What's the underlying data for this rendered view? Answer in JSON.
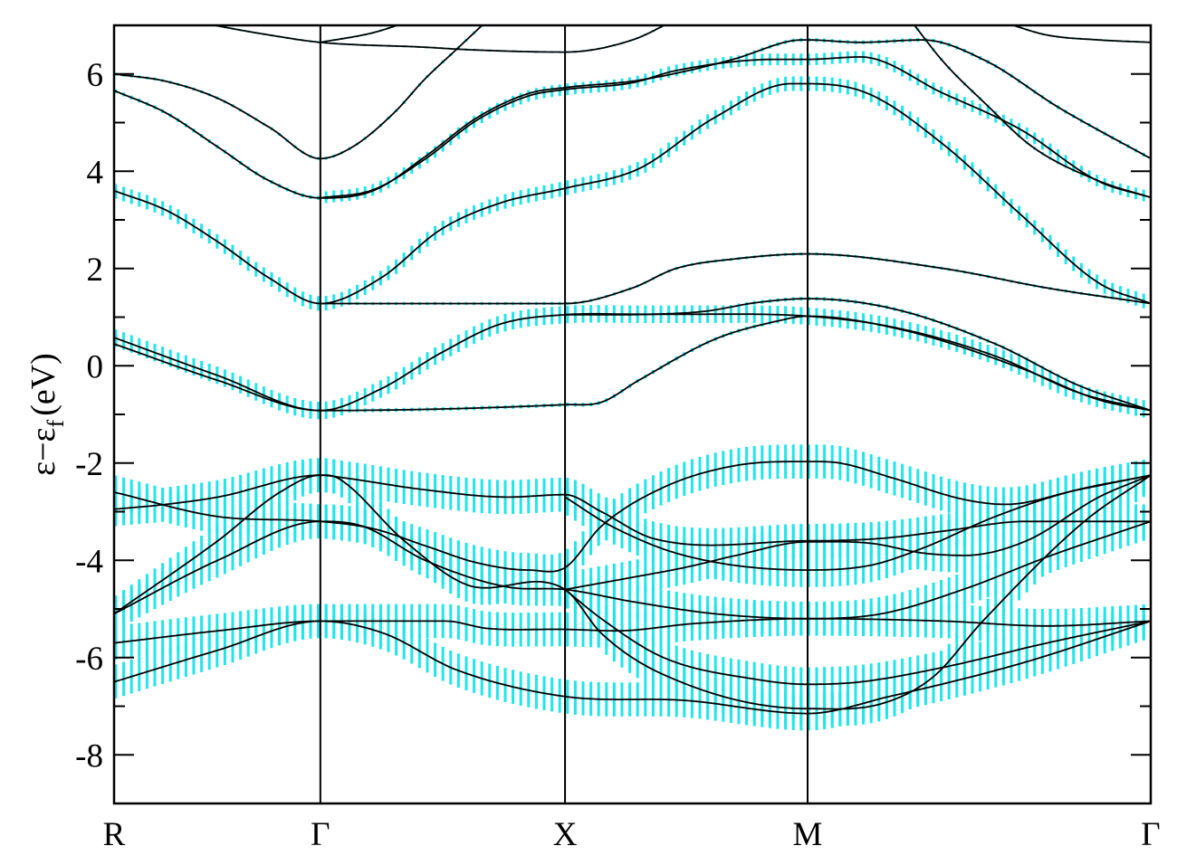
{
  "chart_data": {
    "type": "line",
    "title": "",
    "ylabel": {
      "main": "ε−ε",
      "subscript": "f",
      "unit": "(eV)"
    },
    "xlabel": "",
    "ylim": [
      -9,
      7
    ],
    "xlim": [
      0,
      1
    ],
    "yticks": [
      -8,
      -6,
      -4,
      -2,
      0,
      2,
      4,
      6
    ],
    "yticks_minor_step": 1,
    "xticks": [
      {
        "label": "R",
        "k": 0
      },
      {
        "label": "Γ",
        "k": 0.199
      },
      {
        "label": "X",
        "k": 0.435
      },
      {
        "label": "M",
        "k": 0.669
      },
      {
        "label": "Γ",
        "k": 1.0
      }
    ],
    "grid": "vertical lines at high-symmetry points",
    "colors": {
      "band_line": "#000000",
      "fat_band": "#1ee6ea"
    },
    "bands": [
      {
        "weight": 0.35,
        "points": [
          [
            0,
            -6.5
          ],
          [
            0.1,
            -5.85
          ],
          [
            0.199,
            -5.25
          ],
          [
            0.26,
            -5.5
          ],
          [
            0.33,
            -6.25
          ],
          [
            0.435,
            -6.8
          ],
          [
            0.55,
            -6.88
          ],
          [
            0.669,
            -7.15
          ],
          [
            0.748,
            -6.8
          ],
          [
            0.878,
            -6.1
          ],
          [
            1,
            -5.25
          ]
        ]
      },
      {
        "weight": 0.35,
        "points": [
          [
            0,
            -5.7
          ],
          [
            0.1,
            -5.45
          ],
          [
            0.199,
            -5.25
          ],
          [
            0.32,
            -5.25
          ],
          [
            0.36,
            -5.4
          ],
          [
            0.435,
            -5.42
          ],
          [
            0.485,
            -5.45
          ],
          [
            0.56,
            -5.3
          ],
          [
            0.669,
            -5.2
          ],
          [
            0.8,
            -5.25
          ],
          [
            0.9,
            -5.35
          ],
          [
            1,
            -5.25
          ]
        ]
      },
      {
        "weight": 0.35,
        "points": [
          [
            0,
            -5.1
          ],
          [
            0.1,
            -3.6
          ],
          [
            0.16,
            -2.6
          ],
          [
            0.199,
            -2.25
          ],
          [
            0.215,
            -2.3
          ],
          [
            0.28,
            -3.6
          ],
          [
            0.34,
            -4.5
          ],
          [
            0.435,
            -4.6
          ],
          [
            0.47,
            -5.5
          ],
          [
            0.53,
            -6.35
          ],
          [
            0.669,
            -7.05
          ],
          [
            0.74,
            -6.95
          ],
          [
            0.79,
            -6.4
          ],
          [
            0.838,
            -5.25
          ],
          [
            0.936,
            -3.2
          ],
          [
            1,
            -2.25
          ]
        ]
      },
      {
        "weight": 0.35,
        "points": [
          [
            0,
            -5.1
          ],
          [
            0.1,
            -4.0
          ],
          [
            0.199,
            -3.2
          ],
          [
            0.24,
            -3.3
          ],
          [
            0.3,
            -4.0
          ],
          [
            0.38,
            -4.55
          ],
          [
            0.435,
            -4.6
          ],
          [
            0.5,
            -4.85
          ],
          [
            0.58,
            -5.1
          ],
          [
            0.669,
            -5.2
          ],
          [
            0.74,
            -5.1
          ],
          [
            0.819,
            -4.6
          ],
          [
            0.904,
            -3.9
          ],
          [
            1,
            -3.2
          ]
        ]
      },
      {
        "weight": 0.35,
        "points": [
          [
            0,
            -2.6
          ],
          [
            0.1,
            -3.1
          ],
          [
            0.199,
            -3.2
          ],
          [
            0.25,
            -3.35
          ],
          [
            0.3,
            -3.7
          ],
          [
            0.35,
            -4.05
          ],
          [
            0.4,
            -4.2
          ],
          [
            0.435,
            -4.15
          ],
          [
            0.47,
            -3.3
          ],
          [
            0.53,
            -2.5
          ],
          [
            0.6,
            -2.05
          ],
          [
            0.669,
            -1.97
          ],
          [
            0.7,
            -2.0
          ],
          [
            0.75,
            -2.3
          ],
          [
            0.82,
            -2.75
          ],
          [
            0.86,
            -2.85
          ],
          [
            0.93,
            -2.55
          ],
          [
            1,
            -2.25
          ]
        ]
      },
      {
        "weight": 0.35,
        "points": [
          [
            0,
            -2.95
          ],
          [
            0.05,
            -2.85
          ],
          [
            0.1,
            -2.7
          ],
          [
            0.199,
            -2.25
          ],
          [
            0.22,
            -2.3
          ],
          [
            0.3,
            -2.55
          ],
          [
            0.38,
            -2.7
          ],
          [
            0.435,
            -2.65
          ],
          [
            0.47,
            -3.0
          ],
          [
            0.52,
            -3.55
          ],
          [
            0.669,
            -3.6
          ],
          [
            0.74,
            -3.55
          ],
          [
            0.8,
            -3.4
          ],
          [
            0.88,
            -3.2
          ],
          [
            1,
            -3.2
          ]
        ]
      },
      {
        "weight": 0.35,
        "points": [
          [
            0.435,
            -2.7
          ],
          [
            0.48,
            -3.3
          ],
          [
            0.55,
            -3.9
          ],
          [
            0.669,
            -4.2
          ],
          [
            0.73,
            -4.1
          ],
          [
            0.78,
            -3.75
          ],
          [
            0.85,
            -3.1
          ],
          [
            0.92,
            -2.6
          ],
          [
            1,
            -2.25
          ]
        ]
      },
      {
        "weight": 0.35,
        "points": [
          [
            0.435,
            -4.6
          ],
          [
            0.5,
            -4.35
          ],
          [
            0.55,
            -4.15
          ],
          [
            0.6,
            -3.9
          ],
          [
            0.669,
            -3.62
          ],
          [
            0.73,
            -3.65
          ],
          [
            0.78,
            -3.85
          ],
          [
            0.82,
            -3.9
          ],
          [
            0.88,
            -3.6
          ],
          [
            0.95,
            -2.7
          ],
          [
            1,
            -2.25
          ]
        ]
      },
      {
        "weight": 0.35,
        "points": [
          [
            0.435,
            -4.6
          ],
          [
            0.47,
            -5.2
          ],
          [
            0.53,
            -6.0
          ],
          [
            0.62,
            -6.45
          ],
          [
            0.669,
            -6.55
          ],
          [
            0.72,
            -6.5
          ],
          [
            0.8,
            -6.2
          ],
          [
            0.9,
            -5.7
          ],
          [
            1,
            -5.25
          ]
        ]
      },
      {
        "weight": 0.04,
        "points": [
          [
            0,
            0.45
          ],
          [
            0.1,
            -0.3
          ],
          [
            0.199,
            -0.92
          ],
          [
            0.435,
            -0.8
          ],
          [
            0.47,
            -0.75
          ],
          [
            0.506,
            -0.3
          ],
          [
            0.58,
            0.55
          ],
          [
            0.64,
            0.92
          ],
          [
            0.669,
            1.02
          ],
          [
            0.764,
            0.72
          ],
          [
            0.875,
            -0.05
          ],
          [
            0.95,
            -0.7
          ],
          [
            1,
            -0.92
          ]
        ]
      },
      {
        "weight": 0.18,
        "points": [
          [
            0,
            0.58
          ],
          [
            0.1,
            -0.2
          ],
          [
            0.199,
            -0.92
          ],
          [
            0.257,
            -0.48
          ],
          [
            0.315,
            0.26
          ],
          [
            0.373,
            0.86
          ],
          [
            0.435,
            1.05
          ],
          [
            0.5,
            1.06
          ],
          [
            0.56,
            1.06
          ],
          [
            0.669,
            1.02
          ],
          [
            0.75,
            0.8
          ],
          [
            0.85,
            0.2
          ],
          [
            0.93,
            -0.55
          ],
          [
            1,
            -0.92
          ]
        ]
      },
      {
        "weight": 0.04,
        "points": [
          [
            0.435,
            1.05
          ],
          [
            0.52,
            1.06
          ],
          [
            0.57,
            1.12
          ],
          [
            0.62,
            1.3
          ],
          [
            0.669,
            1.38
          ],
          [
            0.75,
            1.18
          ],
          [
            0.85,
            0.45
          ],
          [
            0.93,
            -0.4
          ],
          [
            1,
            -0.92
          ]
        ]
      },
      {
        "weight": 0.03,
        "points": [
          [
            0.199,
            1.28
          ],
          [
            0.435,
            1.28
          ],
          [
            0.5,
            1.6
          ],
          [
            0.542,
            2.0
          ],
          [
            0.6,
            2.2
          ],
          [
            0.669,
            2.3
          ],
          [
            0.8,
            2.0
          ],
          [
            0.9,
            1.6
          ],
          [
            1,
            1.28
          ]
        ]
      },
      {
        "weight": 0.15,
        "points": [
          [
            0,
            3.6
          ],
          [
            0.05,
            3.2
          ],
          [
            0.1,
            2.55
          ],
          [
            0.15,
            1.8
          ],
          [
            0.199,
            1.28
          ],
          [
            0.257,
            1.8
          ],
          [
            0.315,
            2.8
          ],
          [
            0.373,
            3.35
          ],
          [
            0.435,
            3.65
          ],
          [
            0.506,
            4.05
          ],
          [
            0.579,
            5.1
          ],
          [
            0.653,
            5.8
          ],
          [
            0.669,
            5.8
          ],
          [
            0.727,
            5.6
          ],
          [
            0.8,
            4.55
          ],
          [
            0.875,
            3.1
          ],
          [
            0.95,
            1.7
          ],
          [
            1,
            1.28
          ]
        ]
      },
      {
        "weight": 0.04,
        "points": [
          [
            0,
            5.66
          ],
          [
            0.05,
            5.2
          ],
          [
            0.1,
            4.5
          ],
          [
            0.15,
            3.8
          ],
          [
            0.199,
            3.45
          ],
          [
            0.25,
            3.6
          ],
          [
            0.3,
            4.3
          ],
          [
            0.35,
            5.1
          ],
          [
            0.4,
            5.6
          ],
          [
            0.435,
            5.72
          ],
          [
            0.506,
            5.87
          ],
          [
            0.597,
            6.3
          ],
          [
            0.653,
            6.68
          ],
          [
            0.669,
            6.7
          ],
          [
            0.72,
            6.65
          ],
          [
            0.78,
            6.7
          ],
          [
            0.84,
            6.28
          ],
          [
            0.912,
            5.3
          ],
          [
            1,
            4.26
          ]
        ]
      },
      {
        "weight": 0.12,
        "points": [
          [
            0.199,
            3.45
          ],
          [
            0.25,
            3.62
          ],
          [
            0.3,
            4.25
          ],
          [
            0.35,
            5.05
          ],
          [
            0.4,
            5.55
          ],
          [
            0.435,
            5.68
          ],
          [
            0.5,
            5.82
          ],
          [
            0.542,
            6.07
          ],
          [
            0.638,
            6.3
          ],
          [
            0.669,
            6.3
          ],
          [
            0.72,
            6.35
          ],
          [
            0.8,
            5.6
          ],
          [
            0.875,
            4.85
          ],
          [
            0.949,
            3.8
          ],
          [
            1,
            3.46
          ]
        ]
      },
      {
        "weight": 0.03,
        "points": [
          [
            0,
            6.0
          ],
          [
            0.05,
            5.85
          ],
          [
            0.1,
            5.5
          ],
          [
            0.15,
            4.9
          ],
          [
            0.199,
            4.26
          ],
          [
            0.23,
            4.5
          ],
          [
            0.27,
            5.2
          ],
          [
            0.3,
            5.9
          ],
          [
            0.33,
            6.5
          ],
          [
            0.37,
            7.3
          ]
        ]
      },
      {
        "weight": 0.02,
        "points": [
          [
            0.05,
            7.2
          ],
          [
            0.097,
            7.0
          ],
          [
            0.15,
            6.8
          ],
          [
            0.199,
            6.65
          ],
          [
            0.3,
            6.55
          ],
          [
            0.341,
            6.5
          ],
          [
            0.435,
            6.45
          ],
          [
            0.5,
            6.7
          ],
          [
            0.54,
            7.1
          ]
        ]
      },
      {
        "weight": 0.02,
        "points": [
          [
            0.199,
            6.65
          ],
          [
            0.25,
            6.85
          ],
          [
            0.3,
            7.2
          ]
        ]
      },
      {
        "weight": 0.03,
        "points": [
          [
            0.765,
            7.2
          ],
          [
            0.8,
            6.25
          ],
          [
            0.84,
            5.4
          ],
          [
            0.886,
            4.5
          ],
          [
            0.95,
            3.8
          ],
          [
            1,
            3.46
          ]
        ]
      },
      {
        "weight": 0.02,
        "points": [
          [
            0.86,
            7.05
          ],
          [
            0.9,
            6.8
          ],
          [
            0.95,
            6.7
          ],
          [
            1,
            6.65
          ]
        ]
      }
    ]
  }
}
